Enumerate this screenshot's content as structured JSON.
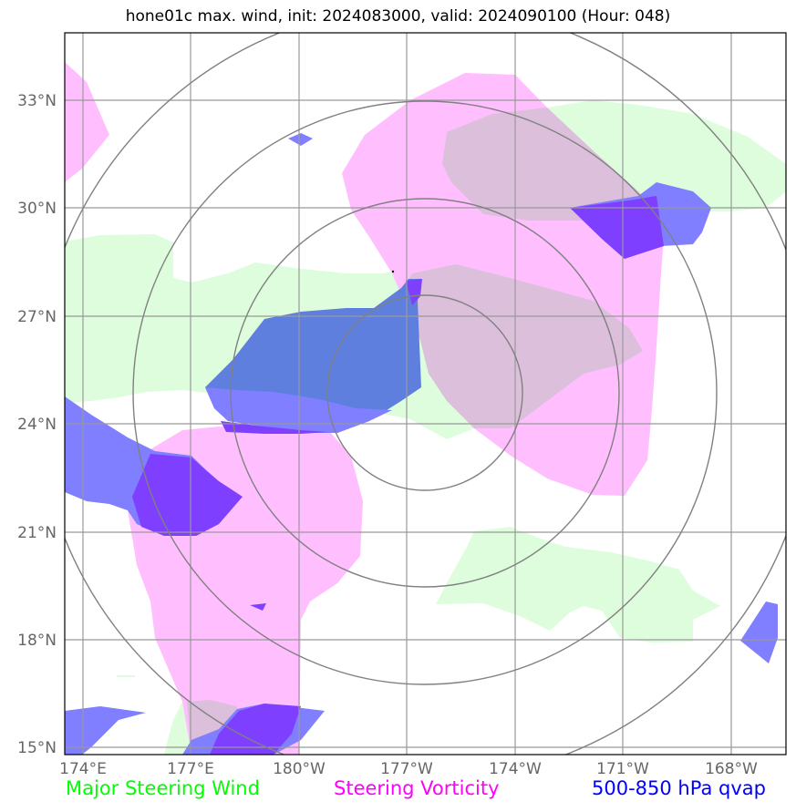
{
  "title": "hone01c max. wind, init: 2024083000, valid: 2024090100 (Hour: 048)",
  "latitude_labels": [
    "33°N",
    "30°N",
    "27°N",
    "24°N",
    "21°N",
    "18°N",
    "15°N"
  ],
  "longitude_labels": [
    "174°E",
    "177°E",
    "180°W",
    "177°W",
    "174°W",
    "171°W",
    "168°W"
  ],
  "legend": {
    "wind": {
      "label": "Major Steering Wind",
      "color": "#00ff00"
    },
    "vorticity": {
      "label": "Steering Vorticity",
      "color": "#ff00ff"
    },
    "qvap": {
      "label": "500-850 hPa qvap",
      "color": "#0000ff"
    }
  },
  "colors": {
    "wind_fill": "#ddfddd",
    "vorticity_fill": "#ffbfff",
    "overlap_fill": "#dbbfdb",
    "qvap_fill": "#7f7fff",
    "qvap_vort_fill": "#7f3fff",
    "qvap_wind_fill": "#5f7fdf",
    "grid": "#999999",
    "range_rings": "#808080"
  }
}
